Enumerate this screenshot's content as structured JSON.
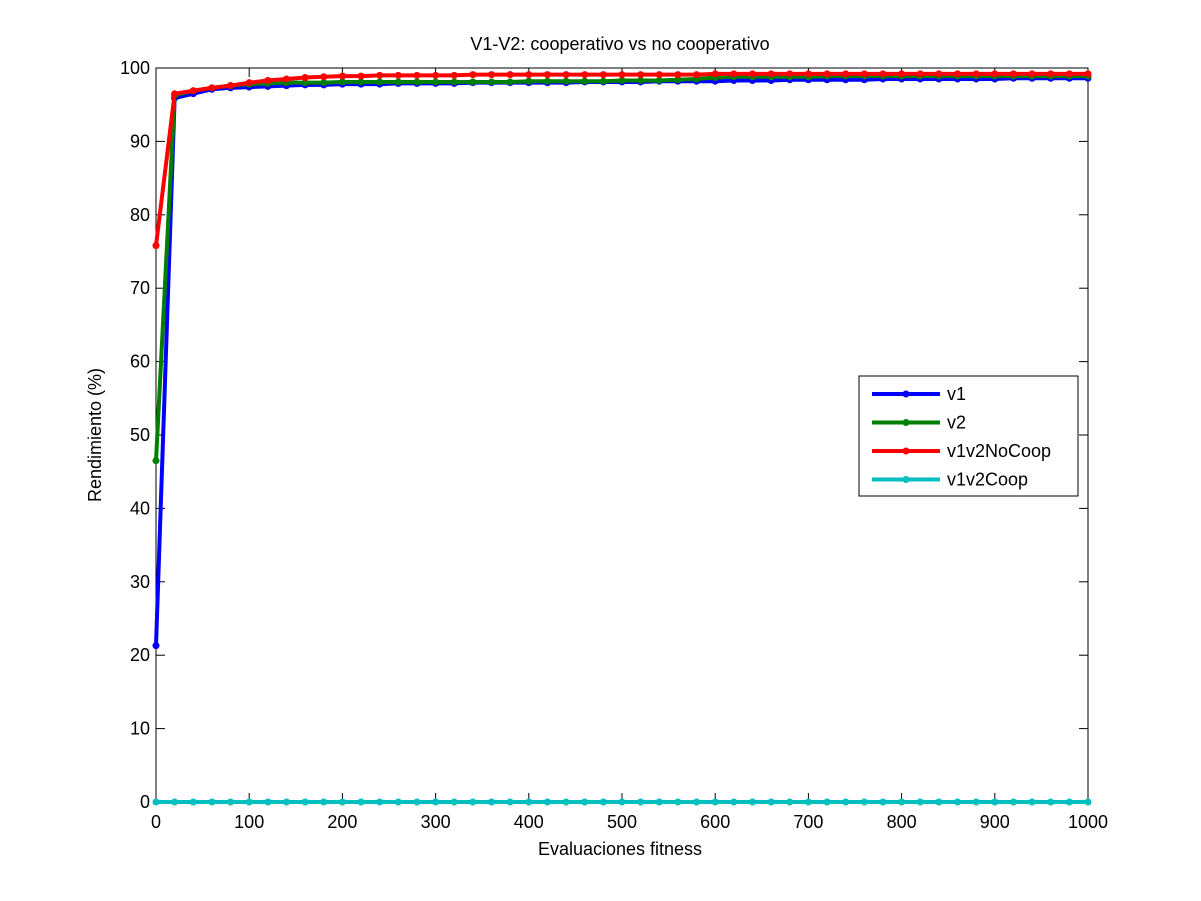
{
  "chart_data": {
    "type": "line",
    "title": "V1-V2: cooperativo vs no cooperativo",
    "xlabel": "Evaluaciones fitness",
    "ylabel": "Rendimiento (%)",
    "xlim": [
      0,
      1000
    ],
    "ylim": [
      0,
      100
    ],
    "xticks": [
      "0",
      "100",
      "200",
      "300",
      "400",
      "500",
      "600",
      "700",
      "800",
      "900",
      "1000"
    ],
    "yticks": [
      "0",
      "10",
      "20",
      "30",
      "40",
      "50",
      "60",
      "70",
      "80",
      "90",
      "100"
    ],
    "grid": false,
    "legend_position": "right",
    "x": [
      0,
      20,
      40,
      60,
      80,
      100,
      120,
      140,
      160,
      180,
      200,
      220,
      240,
      260,
      280,
      300,
      320,
      340,
      360,
      380,
      400,
      420,
      440,
      460,
      480,
      500,
      520,
      540,
      560,
      580,
      600,
      620,
      640,
      660,
      680,
      700,
      720,
      740,
      760,
      780,
      800,
      820,
      840,
      860,
      880,
      900,
      920,
      940,
      960,
      980,
      1000
    ],
    "series": [
      {
        "name": "v1",
        "color": "#0000ff",
        "values": [
          21.3,
          95.9,
          96.5,
          97.1,
          97.3,
          97.4,
          97.5,
          97.6,
          97.7,
          97.7,
          97.8,
          97.8,
          97.8,
          97.9,
          97.9,
          97.9,
          97.9,
          98.0,
          98.0,
          98.0,
          98.0,
          98.0,
          98.0,
          98.1,
          98.1,
          98.1,
          98.1,
          98.2,
          98.2,
          98.2,
          98.2,
          98.3,
          98.3,
          98.3,
          98.4,
          98.4,
          98.4,
          98.4,
          98.4,
          98.5,
          98.5,
          98.5,
          98.5,
          98.5,
          98.5,
          98.5,
          98.6,
          98.6,
          98.6,
          98.6,
          98.6
        ]
      },
      {
        "name": "v2",
        "color": "#007f00",
        "values": [
          46.5,
          96.3,
          96.9,
          97.3,
          97.6,
          97.8,
          97.9,
          98.0,
          98.0,
          98.0,
          98.1,
          98.1,
          98.1,
          98.1,
          98.1,
          98.1,
          98.1,
          98.1,
          98.1,
          98.1,
          98.2,
          98.2,
          98.2,
          98.2,
          98.2,
          98.3,
          98.3,
          98.3,
          98.4,
          98.5,
          98.7,
          98.8,
          98.8,
          98.8,
          98.8,
          98.8,
          98.9,
          98.9,
          98.9,
          98.9,
          98.9,
          98.9,
          98.9,
          98.9,
          98.9,
          98.9,
          98.9,
          98.9,
          98.9,
          98.9,
          98.9
        ]
      },
      {
        "name": "v1v2NoCoop",
        "color": "#ff0000",
        "values": [
          75.8,
          96.5,
          96.9,
          97.3,
          97.6,
          98.0,
          98.3,
          98.5,
          98.7,
          98.8,
          98.9,
          98.9,
          99.0,
          99.0,
          99.0,
          99.0,
          99.0,
          99.1,
          99.1,
          99.1,
          99.1,
          99.1,
          99.1,
          99.1,
          99.1,
          99.1,
          99.1,
          99.1,
          99.1,
          99.1,
          99.2,
          99.2,
          99.2,
          99.2,
          99.2,
          99.2,
          99.2,
          99.2,
          99.2,
          99.2,
          99.2,
          99.2,
          99.2,
          99.2,
          99.2,
          99.2,
          99.2,
          99.2,
          99.2,
          99.2,
          99.2
        ]
      },
      {
        "name": "v1v2Coop",
        "color": "#00bfbf",
        "values": [
          0,
          0,
          0,
          0,
          0,
          0,
          0,
          0,
          0,
          0,
          0,
          0,
          0,
          0,
          0,
          0,
          0,
          0,
          0,
          0,
          0,
          0,
          0,
          0,
          0,
          0,
          0,
          0,
          0,
          0,
          0,
          0,
          0,
          0,
          0,
          0,
          0,
          0,
          0,
          0,
          0,
          0,
          0,
          0,
          0,
          0,
          0,
          0,
          0,
          0,
          0
        ]
      }
    ]
  }
}
